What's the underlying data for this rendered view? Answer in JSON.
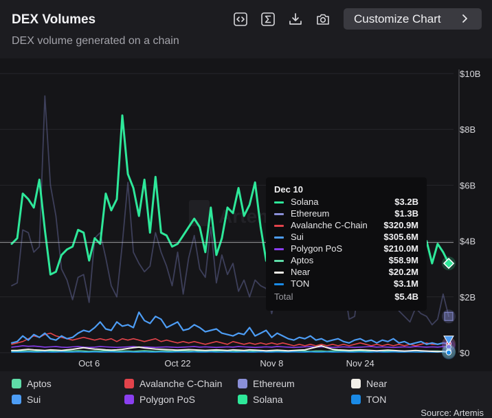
{
  "header": {
    "title": "DEX Volumes",
    "subtitle": "DEX volume generated on a chain",
    "customize_label": "Customize Chart"
  },
  "icons": [
    "embed-code-icon",
    "sigma-icon",
    "download-icon",
    "camera-icon",
    "chevron-right-icon"
  ],
  "watermark": "Artemis",
  "source": "Source: Artemis",
  "tooltip": {
    "date": "Dec 10",
    "rows": [
      {
        "name": "Solana",
        "value": "$3.2B",
        "color": "#2ee89a"
      },
      {
        "name": "Ethereum",
        "value": "$1.3B",
        "color": "#8a8fd8"
      },
      {
        "name": "Avalanche C-Chain",
        "value": "$320.9M",
        "color": "#e2434b"
      },
      {
        "name": "Sui",
        "value": "$305.6M",
        "color": "#4d9df5"
      },
      {
        "name": "Polygon PoS",
        "value": "$210.0M",
        "color": "#8a3ff0"
      },
      {
        "name": "Aptos",
        "value": "$58.9M",
        "color": "#5fdca8"
      },
      {
        "name": "Near",
        "value": "$20.2M",
        "color": "#f2efe8"
      },
      {
        "name": "TON",
        "value": "$3.1M",
        "color": "#1a8ae6"
      }
    ],
    "total_label": "Total",
    "total_value": "$5.4B"
  },
  "legend": [
    {
      "name": "Aptos",
      "color": "#5fdca8"
    },
    {
      "name": "Avalanche C-Chain",
      "color": "#e2434b"
    },
    {
      "name": "Ethereum",
      "color": "#8a8fd8"
    },
    {
      "name": "Near",
      "color": "#f2efe8"
    },
    {
      "name": "Sui",
      "color": "#4d9df5"
    },
    {
      "name": "Polygon PoS",
      "color": "#8a3ff0"
    },
    {
      "name": "Solana",
      "color": "#2ee89a"
    },
    {
      "name": "TON",
      "color": "#1a8ae6"
    }
  ],
  "chart_data": {
    "type": "line",
    "title": "DEX Volumes",
    "subtitle": "DEX volume generated on a chain",
    "xlabel": "",
    "ylabel": "",
    "x_start": "Sep 22",
    "x_end": "Dec 10",
    "x_ticks": [
      {
        "label": "Oct 6",
        "day": 14
      },
      {
        "label": "Oct 22",
        "day": 30
      },
      {
        "label": "Nov 8",
        "day": 47
      },
      {
        "label": "Nov 24",
        "day": 63
      }
    ],
    "y_ticks": [
      {
        "label": "$0",
        "value": 0
      },
      {
        "label": "$2B",
        "value": 2
      },
      {
        "label": "$4B",
        "value": 4
      },
      {
        "label": "$6B",
        "value": 6
      },
      {
        "label": "$8B",
        "value": 8
      },
      {
        "label": "$10B",
        "value": 10
      }
    ],
    "ylim": [
      0,
      10
    ],
    "units": "USD billions",
    "highlight_day": 79,
    "crosshair_value": 3.95,
    "series": [
      {
        "name": "Solana",
        "color": "#2ee89a",
        "values": [
          3.9,
          4.1,
          5.7,
          5.5,
          5.2,
          6.2,
          4.4,
          2.8,
          2.9,
          3.5,
          3.7,
          3.8,
          4.4,
          4.3,
          3.3,
          4.1,
          3.9,
          5.7,
          5.1,
          5.5,
          8.5,
          6.4,
          5.9,
          4.9,
          6.2,
          4.3,
          6.3,
          4.3,
          4.2,
          3.8,
          3.9,
          4.2,
          4.5,
          4.8,
          4.5,
          3.6,
          5.2,
          3.5,
          4.1,
          5.2,
          5.0,
          5.9,
          4.9,
          5.3,
          6.1,
          4.5,
          3.3,
          3.0,
          5.1,
          4.0,
          5.4,
          4.1,
          4.6,
          5.3,
          4.7,
          4.9,
          4.8,
          5.4,
          4.5,
          4.8,
          4.9,
          3.7,
          3.8,
          3.9,
          5.0,
          4.5,
          4.6,
          3.8,
          3.9,
          4.4,
          3.6,
          4.4,
          4.3,
          3.6,
          3.5,
          4.0,
          3.2,
          3.9,
          3.6,
          3.2
        ]
      },
      {
        "name": "Ethereum",
        "color": "#8a8fd8",
        "values": [
          2.4,
          2.5,
          4.4,
          4.3,
          3.6,
          3.8,
          9.2,
          6.0,
          4.9,
          3.0,
          2.6,
          1.9,
          2.7,
          2.8,
          1.8,
          4.1,
          4.3,
          3.4,
          2.4,
          2.0,
          3.9,
          6.1,
          3.6,
          3.2,
          2.9,
          3.1,
          4.3,
          3.6,
          3.1,
          2.4,
          3.6,
          2.1,
          3.4,
          4.2,
          3.0,
          2.7,
          4.5,
          2.5,
          3.5,
          2.8,
          3.2,
          2.2,
          2.6,
          2.0,
          2.6,
          2.4,
          2.3,
          1.4,
          2.2,
          3.5,
          4.2,
          2.8,
          3.4,
          3.4,
          4.1,
          3.0,
          2.7,
          2.9,
          2.8,
          2.4,
          2.5,
          1.2,
          1.3,
          2.8,
          2.1,
          1.9,
          2.3,
          1.7,
          1.6,
          1.8,
          1.5,
          1.3,
          1.1,
          1.6,
          1.4,
          1.3,
          1.0,
          1.2,
          2.1,
          1.3
        ]
      },
      {
        "name": "Sui",
        "color": "#4d9df5",
        "values": [
          0.35,
          0.4,
          0.6,
          0.45,
          0.65,
          0.55,
          0.7,
          0.5,
          0.45,
          0.6,
          0.5,
          0.55,
          0.7,
          0.8,
          0.75,
          0.9,
          1.1,
          0.85,
          0.8,
          1.1,
          0.95,
          1.0,
          0.9,
          1.45,
          1.15,
          1.05,
          1.3,
          1.2,
          0.9,
          1.0,
          1.1,
          0.8,
          0.85,
          1.0,
          0.9,
          0.75,
          0.8,
          0.85,
          0.7,
          0.65,
          0.6,
          0.7,
          0.65,
          0.9,
          0.6,
          0.7,
          0.8,
          0.55,
          0.7,
          0.6,
          0.5,
          0.45,
          0.55,
          0.5,
          0.6,
          0.45,
          0.5,
          0.4,
          0.45,
          0.5,
          0.4,
          0.35,
          0.45,
          0.5,
          0.4,
          0.45,
          0.35,
          0.45,
          0.4,
          0.5,
          0.35,
          0.4,
          0.3,
          0.35,
          0.4,
          0.3,
          0.35,
          0.3,
          0.35,
          0.31
        ]
      },
      {
        "name": "Avalanche C-Chain",
        "color": "#e2434b",
        "values": [
          0.3,
          0.35,
          0.4,
          0.5,
          0.6,
          0.55,
          0.65,
          0.7,
          0.6,
          0.55,
          0.5,
          0.45,
          0.5,
          0.55,
          0.5,
          0.45,
          0.5,
          0.45,
          0.5,
          0.4,
          0.5,
          0.45,
          0.5,
          0.45,
          0.4,
          0.45,
          0.5,
          0.4,
          0.45,
          0.4,
          0.35,
          0.4,
          0.35,
          0.4,
          0.35,
          0.3,
          0.35,
          0.4,
          0.35,
          0.3,
          0.4,
          0.35,
          0.3,
          0.35,
          0.3,
          0.35,
          0.3,
          0.35,
          0.3,
          0.35,
          0.3,
          0.25,
          0.3,
          0.25,
          0.3,
          0.25,
          0.3,
          0.25,
          0.3,
          0.25,
          0.3,
          0.25,
          0.3,
          0.35,
          0.3,
          0.25,
          0.3,
          0.25,
          0.3,
          0.25,
          0.3,
          0.25,
          0.3,
          0.25,
          0.3,
          0.35,
          0.3,
          0.3,
          0.35,
          0.32
        ]
      },
      {
        "name": "Polygon PoS",
        "color": "#8a3ff0",
        "values": [
          0.2,
          0.22,
          0.25,
          0.23,
          0.24,
          0.22,
          0.2,
          0.21,
          0.22,
          0.2,
          0.19,
          0.21,
          0.22,
          0.2,
          0.19,
          0.2,
          0.22,
          0.21,
          0.2,
          0.19,
          0.2,
          0.21,
          0.22,
          0.2,
          0.21,
          0.2,
          0.19,
          0.2,
          0.21,
          0.2,
          0.19,
          0.2,
          0.21,
          0.22,
          0.2,
          0.21,
          0.2,
          0.19,
          0.2,
          0.21,
          0.2,
          0.22,
          0.21,
          0.2,
          0.19,
          0.2,
          0.21,
          0.2,
          0.22,
          0.21,
          0.2,
          0.19,
          0.2,
          0.21,
          0.22,
          0.2,
          0.21,
          0.2,
          0.19,
          0.2,
          0.21,
          0.2,
          0.19,
          0.2,
          0.21,
          0.22,
          0.2,
          0.21,
          0.2,
          0.19,
          0.2,
          0.21,
          0.2,
          0.22,
          0.21,
          0.2,
          0.21,
          0.2,
          0.22,
          0.21
        ]
      },
      {
        "name": "Aptos",
        "color": "#5fdca8",
        "values": [
          0.05,
          0.05,
          0.06,
          0.06,
          0.05,
          0.06,
          0.07,
          0.06,
          0.05,
          0.05,
          0.06,
          0.06,
          0.07,
          0.06,
          0.05,
          0.06,
          0.06,
          0.07,
          0.06,
          0.05,
          0.06,
          0.06,
          0.05,
          0.06,
          0.07,
          0.06,
          0.05,
          0.06,
          0.06,
          0.05,
          0.06,
          0.07,
          0.06,
          0.05,
          0.06,
          0.06,
          0.05,
          0.06,
          0.07,
          0.06,
          0.05,
          0.06,
          0.06,
          0.05,
          0.06,
          0.07,
          0.06,
          0.05,
          0.06,
          0.06,
          0.05,
          0.06,
          0.07,
          0.06,
          0.05,
          0.06,
          0.06,
          0.05,
          0.06,
          0.07,
          0.06,
          0.05,
          0.06,
          0.06,
          0.05,
          0.06,
          0.07,
          0.06,
          0.05,
          0.06,
          0.06,
          0.05,
          0.06,
          0.07,
          0.06,
          0.05,
          0.06,
          0.06,
          0.05,
          0.059
        ]
      },
      {
        "name": "Near",
        "color": "#f2efe8",
        "values": [
          0.08,
          0.08,
          0.1,
          0.12,
          0.1,
          0.09,
          0.08,
          0.1,
          0.09,
          0.08,
          0.1,
          0.12,
          0.15,
          0.18,
          0.15,
          0.13,
          0.12,
          0.1,
          0.09,
          0.1,
          0.12,
          0.15,
          0.18,
          0.2,
          0.17,
          0.15,
          0.13,
          0.12,
          0.11,
          0.1,
          0.09,
          0.1,
          0.11,
          0.1,
          0.09,
          0.08,
          0.09,
          0.1,
          0.09,
          0.08,
          0.1,
          0.09,
          0.08,
          0.1,
          0.09,
          0.08,
          0.07,
          0.08,
          0.09,
          0.08,
          0.07,
          0.08,
          0.09,
          0.1,
          0.15,
          0.2,
          0.25,
          0.18,
          0.12,
          0.1,
          0.09,
          0.08,
          0.09,
          0.1,
          0.09,
          0.08,
          0.07,
          0.08,
          0.09,
          0.08,
          0.07,
          0.06,
          0.07,
          0.08,
          0.07,
          0.06,
          0.05,
          0.04,
          0.05,
          0.02
        ]
      },
      {
        "name": "TON",
        "color": "#1a8ae6",
        "values": [
          0.02,
          0.02,
          0.02,
          0.03,
          0.02,
          0.02,
          0.03,
          0.02,
          0.02,
          0.03,
          0.02,
          0.02,
          0.03,
          0.02,
          0.02,
          0.03,
          0.02,
          0.02,
          0.03,
          0.02,
          0.02,
          0.03,
          0.02,
          0.02,
          0.03,
          0.02,
          0.02,
          0.03,
          0.02,
          0.02,
          0.03,
          0.02,
          0.02,
          0.03,
          0.02,
          0.02,
          0.03,
          0.02,
          0.02,
          0.03,
          0.02,
          0.02,
          0.03,
          0.02,
          0.02,
          0.03,
          0.02,
          0.02,
          0.03,
          0.02,
          0.02,
          0.03,
          0.02,
          0.02,
          0.03,
          0.02,
          0.02,
          0.03,
          0.02,
          0.02,
          0.03,
          0.02,
          0.02,
          0.03,
          0.02,
          0.02,
          0.03,
          0.02,
          0.02,
          0.03,
          0.02,
          0.02,
          0.03,
          0.02,
          0.02,
          0.03,
          0.02,
          0.02,
          0.03,
          0.003
        ]
      }
    ]
  }
}
